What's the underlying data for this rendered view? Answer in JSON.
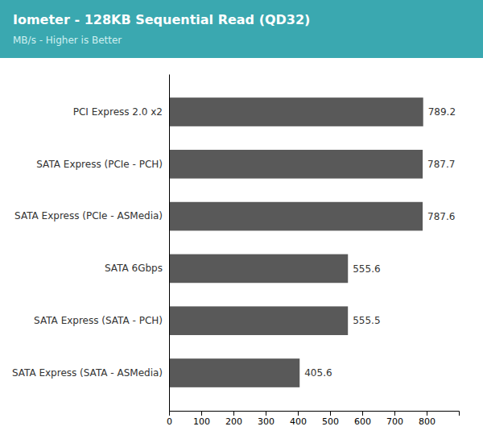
{
  "chart_data": {
    "type": "bar",
    "orientation": "horizontal",
    "title": "Iometer - 128KB Sequential Read (QD32)",
    "subtitle": "MB/s - Higher is Better",
    "categories": [
      "SATA Express (SATA - ASMedia)",
      "SATA Express (SATA - PCH)",
      "SATA 6Gbps",
      "SATA Express (PCIe - ASMedia)",
      "SATA Express (PCIe - PCH)",
      "PCI Express 2.0 x2"
    ],
    "values": [
      405.6,
      555.5,
      555.6,
      787.6,
      787.7,
      789.2
    ],
    "color": "#595959",
    "xlim": [
      0,
      900
    ],
    "xticks": [
      0,
      100,
      200,
      300,
      400,
      500,
      600,
      700,
      800
    ],
    "data_labels": true,
    "grid": false
  }
}
